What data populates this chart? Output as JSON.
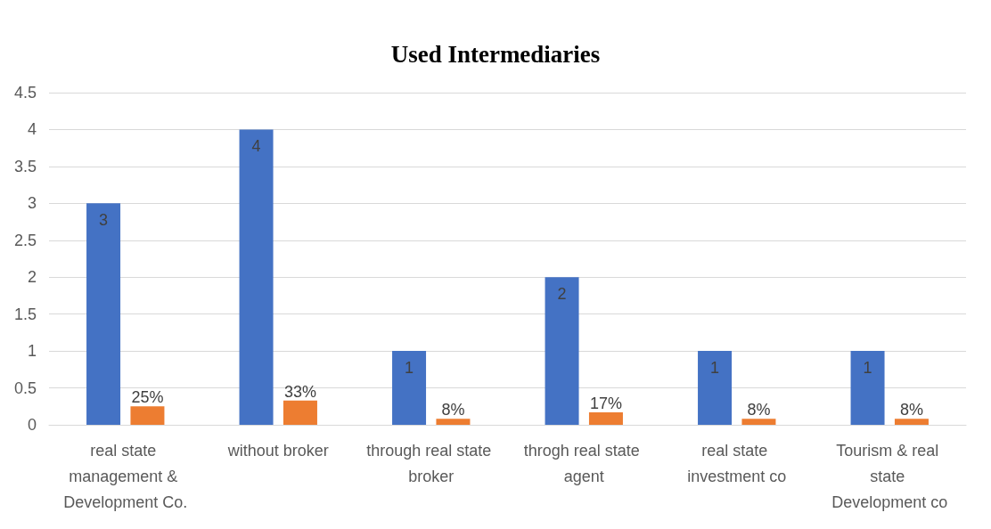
{
  "chart_data": {
    "type": "bar",
    "title": "Used Intermediaries",
    "categories": [
      "real state management & Development Co.",
      "without broker",
      "through real state broker",
      "throgh real state agent",
      "real state investment co",
      "Tourism & real state Development co"
    ],
    "series": [
      {
        "color": "#4472c4",
        "values": [
          3,
          4,
          1,
          2,
          1,
          1
        ],
        "value_labels": [
          "3",
          "4",
          "1",
          "2",
          "1",
          "1"
        ]
      },
      {
        "color": "#ed7d31",
        "values": [
          0.25,
          0.33,
          0.08,
          0.17,
          0.08,
          0.08
        ],
        "value_labels": [
          "25%",
          "33%",
          "8%",
          "17%",
          "8%",
          "8%"
        ]
      }
    ],
    "ylim": [
      0,
      4.5
    ],
    "yticks": [
      0,
      0.5,
      1,
      1.5,
      2,
      2.5,
      3,
      3.5,
      4,
      4.5
    ],
    "grid": "y"
  }
}
